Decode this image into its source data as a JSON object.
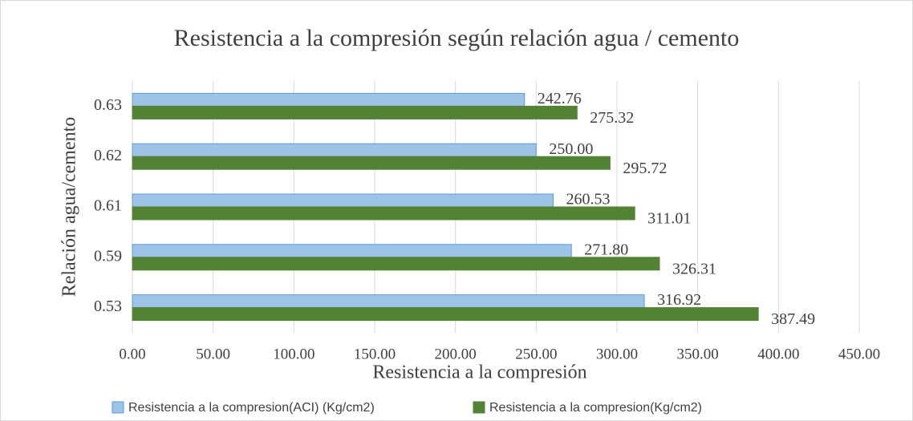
{
  "chart_data": {
    "type": "bar",
    "orientation": "horizontal",
    "title": "Resistencia a la compresión según relación agua / cemento",
    "x_label": "Resistencia a la compresión",
    "y_label": "Relación agua/cemento",
    "categories": [
      "0.53",
      "0.59",
      "0.61",
      "0.62",
      "0.63"
    ],
    "series": [
      {
        "name": "Resistencia a la compresion(ACI) (Kg/cm2)",
        "color": "#9dc3e6",
        "edge_color": "#5b9bd5",
        "values": [
          316.92,
          271.8,
          260.53,
          250,
          242.76
        ],
        "value_labels": [
          "316.92",
          "271.80",
          "260.53",
          "250.00",
          "242.76"
        ]
      },
      {
        "name": "Resistencia a la compresion(Kg/cm2)",
        "color": "#548235",
        "edge_color": "#548235",
        "values": [
          387.49,
          326.31,
          311.01,
          295.72,
          275.32
        ],
        "value_labels": [
          "387.49",
          "326.31",
          "311.01",
          "295.72",
          "275.32"
        ]
      }
    ],
    "xlim": [
      0,
      450
    ],
    "xticks": [
      {
        "value": 0,
        "label": "0.00"
      },
      {
        "value": 50,
        "label": "50.00"
      },
      {
        "value": 100,
        "label": "100.00"
      },
      {
        "value": 150,
        "label": "150.00"
      },
      {
        "value": 200,
        "label": "200.00"
      },
      {
        "value": 250,
        "label": "250.00"
      },
      {
        "value": 300,
        "label": "300.00"
      },
      {
        "value": 350,
        "label": "350.00"
      },
      {
        "value": 400,
        "label": "400.00"
      },
      {
        "value": 450,
        "label": "450.00"
      }
    ],
    "grid": true,
    "legend": "bottom"
  }
}
